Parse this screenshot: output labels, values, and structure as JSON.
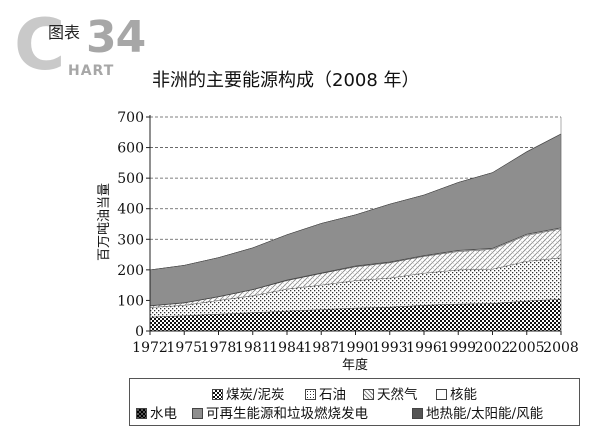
{
  "brand": {
    "letter": "C",
    "number": "34",
    "label": "图表",
    "sub": "HART"
  },
  "chart_data": {
    "type": "area",
    "stacked": true,
    "title": "非洲的主要能源构成（2008 年）",
    "xlabel": "年度",
    "ylabel": "百万吨油当量",
    "ylim": [
      0,
      700
    ],
    "yticks": [
      0,
      100,
      200,
      300,
      400,
      500,
      600,
      700
    ],
    "xticks": [
      1972,
      1975,
      1978,
      1981,
      1984,
      1987,
      1990,
      1993,
      1996,
      1999,
      2002,
      2005,
      2008
    ],
    "grid": "horizontal-dashed",
    "legend_position": "bottom",
    "x": [
      1972,
      1975,
      1978,
      1981,
      1984,
      1987,
      1990,
      1993,
      1996,
      1999,
      2002,
      2005,
      2008
    ],
    "series": [
      {
        "name": "煤炭/泥炭",
        "pattern": "checker",
        "values": [
          45,
          50,
          55,
          60,
          65,
          70,
          75,
          78,
          84,
          88,
          90,
          98,
          104
        ]
      },
      {
        "name": "石油",
        "pattern": "dots",
        "values": [
          32,
          34,
          45,
          55,
          72,
          80,
          90,
          95,
          105,
          112,
          112,
          130,
          135
        ]
      },
      {
        "name": "天然气",
        "pattern": "hatch",
        "values": [
          5,
          8,
          12,
          20,
          28,
          38,
          45,
          50,
          55,
          60,
          65,
          85,
          95
        ]
      },
      {
        "name": "核能",
        "pattern": "blank",
        "values": [
          0,
          0,
          0,
          0,
          1,
          1,
          2,
          2,
          2,
          3,
          3,
          3,
          3
        ]
      },
      {
        "name": "水电",
        "pattern": "dark-checker",
        "values": [
          1,
          1,
          1,
          1,
          1,
          1,
          1,
          1,
          1,
          1,
          1,
          1,
          1
        ]
      },
      {
        "name": "可再生能源和垃圾燃烧发电",
        "pattern": "gray",
        "values": [
          117,
          122,
          127,
          136,
          148,
          162,
          167,
          189,
          198,
          222,
          247,
          269,
          306
        ]
      },
      {
        "name": "地热能/太阳能/风能",
        "pattern": "dark-gray",
        "values": [
          0,
          0,
          0,
          0,
          0,
          0,
          0,
          0,
          0,
          0,
          0,
          1,
          1
        ]
      }
    ]
  },
  "colors": {
    "gray_fill": "#8e8e8e",
    "axis": "#222222",
    "grid": "#555555"
  }
}
